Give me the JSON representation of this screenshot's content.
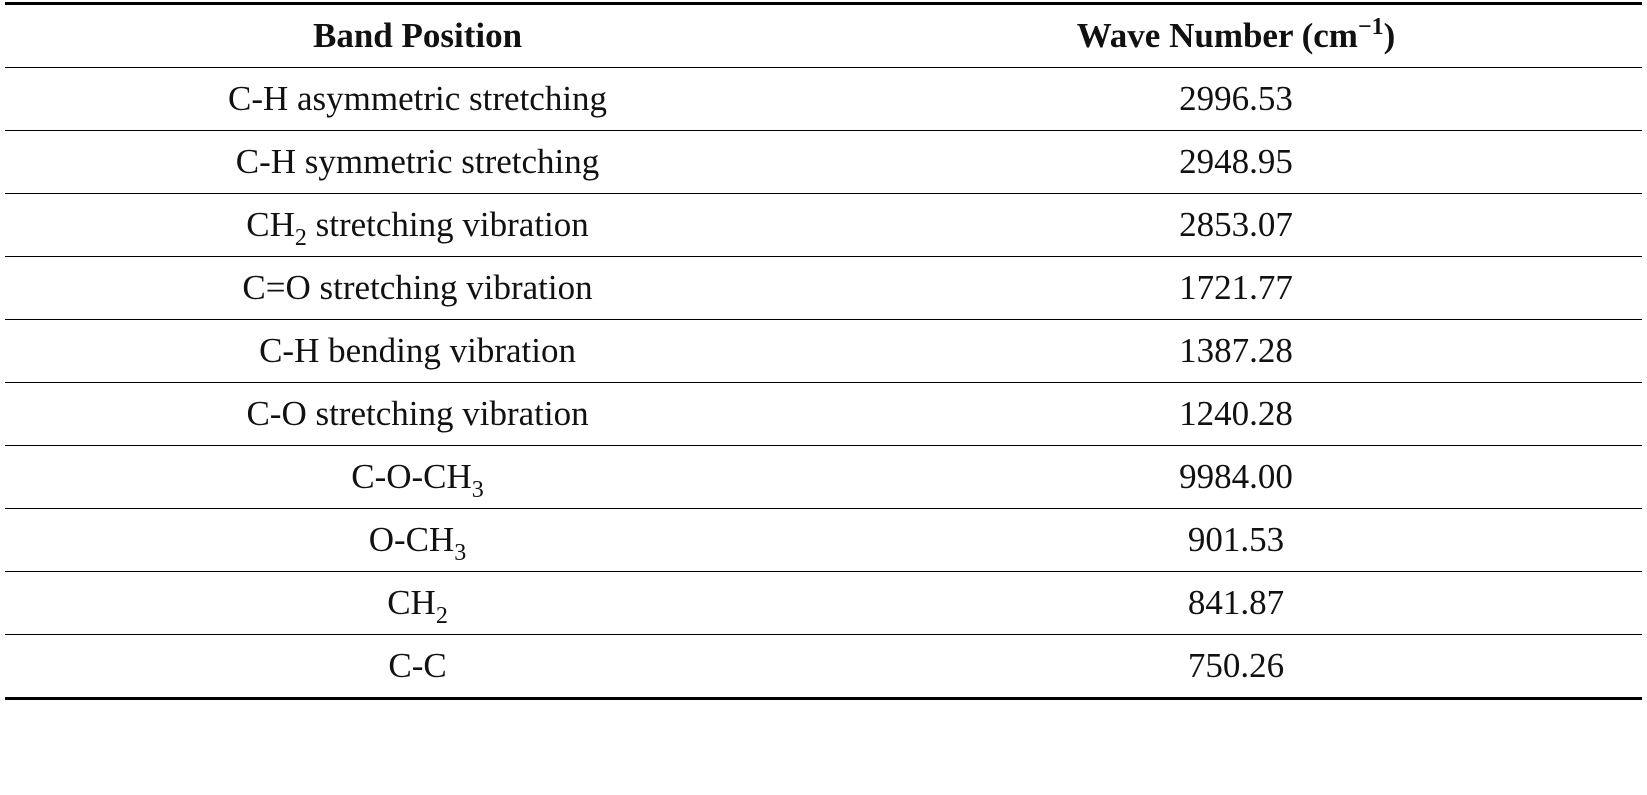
{
  "table": {
    "headers": {
      "band_position": "Band Position",
      "wave_number_prefix": "Wave Number (cm",
      "wave_number_sup": "−1",
      "wave_number_suffix": ")"
    },
    "rows": [
      {
        "band": {
          "main": "C-H asymmetric stretching",
          "sub": "",
          "after": ""
        },
        "value": "2996.53"
      },
      {
        "band": {
          "main": "C-H symmetric stretching",
          "sub": "",
          "after": ""
        },
        "value": "2948.95"
      },
      {
        "band": {
          "main": "CH",
          "sub": "2",
          "after": " stretching vibration"
        },
        "value": "2853.07"
      },
      {
        "band": {
          "main": "C=O stretching vibration",
          "sub": "",
          "after": ""
        },
        "value": "1721.77"
      },
      {
        "band": {
          "main": "C-H bending vibration",
          "sub": "",
          "after": ""
        },
        "value": "1387.28"
      },
      {
        "band": {
          "main": "C-O stretching vibration",
          "sub": "",
          "after": ""
        },
        "value": "1240.28"
      },
      {
        "band": {
          "main": "C-O-CH",
          "sub": "3",
          "after": ""
        },
        "value": "9984.00"
      },
      {
        "band": {
          "main": "O-CH",
          "sub": "3",
          "after": ""
        },
        "value": "901.53"
      },
      {
        "band": {
          "main": "CH",
          "sub": "2",
          "after": ""
        },
        "value": "841.87"
      },
      {
        "band": {
          "main": "C-C",
          "sub": "",
          "after": ""
        },
        "value": "750.26"
      }
    ]
  }
}
